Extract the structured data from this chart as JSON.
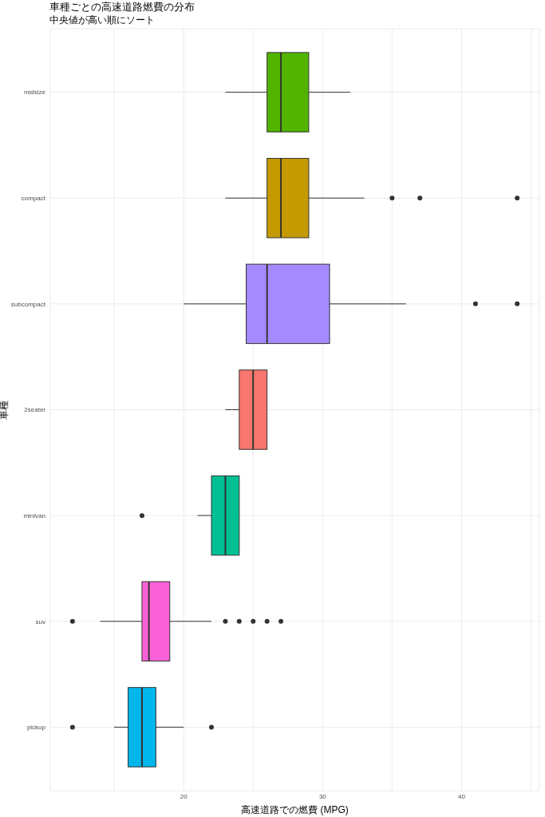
{
  "chart_data": {
    "type": "box",
    "title": "車種ごとの高速道路燃費の分布",
    "subtitle": "中央値が高い順にソート",
    "xlabel": "高速道路での燃費 (MPG)",
    "ylabel": "車種",
    "orientation": "horizontal",
    "categories": [
      "midsize",
      "compact",
      "subcompact",
      "2seater",
      "minivan",
      "suv",
      "pickup"
    ],
    "colors": [
      "#53b400",
      "#c49a00",
      "#a58aff",
      "#f8766d",
      "#00c094",
      "#fb61d7",
      "#00b6eb"
    ],
    "boxes": [
      {
        "low": 23,
        "q1": 26,
        "median": 27,
        "q3": 29,
        "high": 32
      },
      {
        "low": 23,
        "q1": 26,
        "median": 27,
        "q3": 29,
        "high": 33,
        "outliers": [
          35,
          37,
          44
        ]
      },
      {
        "low": 20,
        "q1": 24.5,
        "median": 26,
        "q3": 30.5,
        "high": 36,
        "outliers": [
          41,
          44
        ]
      },
      {
        "low": 23,
        "q1": 24,
        "median": 25,
        "q3": 26,
        "high": 26
      },
      {
        "low": 21,
        "q1": 22,
        "median": 23,
        "q3": 24,
        "high": 24,
        "outliers": [
          17
        ]
      },
      {
        "low": 14,
        "q1": 17,
        "median": 17.5,
        "q3": 19,
        "high": 22,
        "outliers": [
          12,
          23,
          24,
          25,
          26,
          27
        ]
      },
      {
        "low": 15,
        "q1": 16,
        "median": 17,
        "q3": 18,
        "high": 20,
        "outliers": [
          12,
          22
        ]
      }
    ],
    "xlim": [
      10.4,
      45.6
    ],
    "xticks": [
      {
        "value": 15,
        "label": null
      },
      20,
      {
        "value": 25,
        "label": null
      },
      30,
      {
        "value": 35,
        "label": null
      },
      40,
      {
        "value": 45,
        "label": null
      }
    ],
    "grid": true
  }
}
